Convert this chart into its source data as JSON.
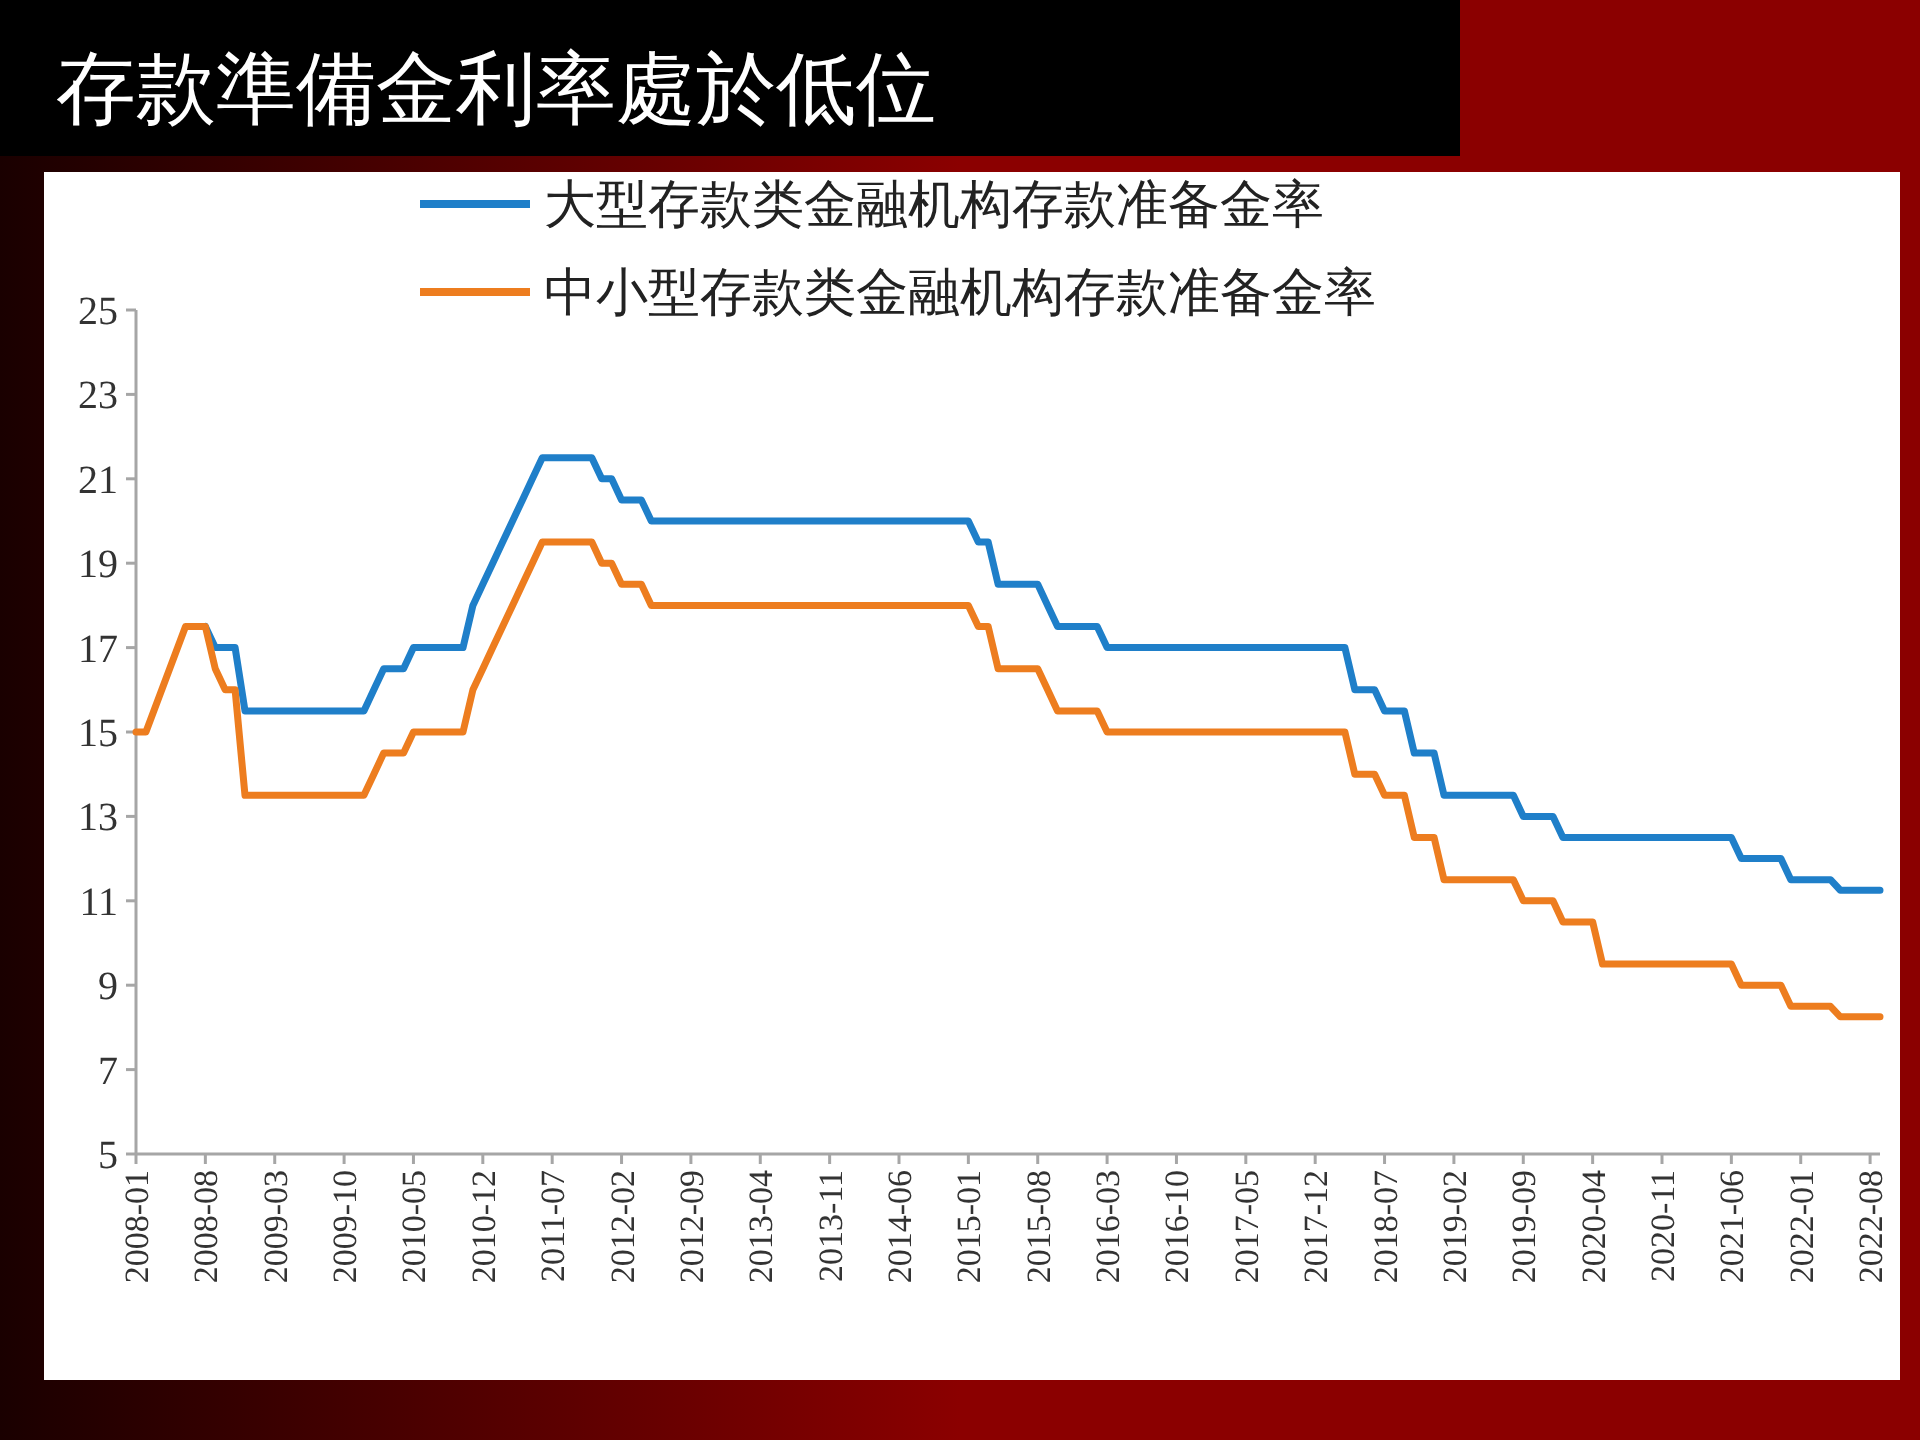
{
  "chart_data": {
    "type": "line",
    "title": "存款準備金利率處於低位",
    "series": [
      {
        "name": "大型存款类金融机构存款准备金率",
        "color": "#1f7fc9",
        "x": [
          "2008-08",
          "2008-09",
          "2008-11",
          "2008-12",
          "2009-12",
          "2010-01",
          "2010-02",
          "2010-04",
          "2010-05",
          "2010-10",
          "2010-11",
          "2010-12",
          "2011-01",
          "2011-02",
          "2011-03",
          "2011-04",
          "2011-05",
          "2011-06",
          "2011-11",
          "2011-12",
          "2012-01",
          "2012-02",
          "2012-04",
          "2012-05",
          "2015-01",
          "2015-02",
          "2015-03",
          "2015-04",
          "2015-08",
          "2015-09",
          "2015-10",
          "2016-02",
          "2016-03",
          "2018-03",
          "2018-04",
          "2018-06",
          "2018-07",
          "2018-09",
          "2018-10",
          "2018-12",
          "2019-01",
          "2019-08",
          "2019-09",
          "2019-12",
          "2020-01",
          "2021-06",
          "2021-07",
          "2021-11",
          "2021-12",
          "2022-04",
          "2022-05",
          "2022-09"
        ],
        "values": [
          17.5,
          17,
          17,
          15.5,
          15.5,
          16,
          16.5,
          16.5,
          17,
          17,
          18,
          18.5,
          19,
          19.5,
          20,
          20.5,
          21,
          21.5,
          21.5,
          21,
          21,
          20.5,
          20.5,
          20,
          20,
          19.5,
          19.5,
          18.5,
          18.5,
          18,
          17.5,
          17.5,
          17,
          17,
          16,
          16,
          15.5,
          15.5,
          14.5,
          14.5,
          13.5,
          13.5,
          13,
          13,
          12.5,
          12.5,
          12,
          12,
          11.5,
          11.5,
          11.25,
          11.25
        ]
      },
      {
        "name": "中小型存款类金融机构存款准备金率",
        "color": "#ed7d1f",
        "x": [
          "2008-01",
          "2008-02",
          "2008-06",
          "2008-08",
          "2008-09",
          "2008-10",
          "2008-11",
          "2008-12",
          "2009-12",
          "2010-01",
          "2010-02",
          "2010-04",
          "2010-05",
          "2010-10",
          "2010-11",
          "2010-12",
          "2011-01",
          "2011-02",
          "2011-03",
          "2011-04",
          "2011-05",
          "2011-06",
          "2011-11",
          "2011-12",
          "2012-01",
          "2012-02",
          "2012-04",
          "2012-05",
          "2015-01",
          "2015-02",
          "2015-03",
          "2015-04",
          "2015-08",
          "2015-09",
          "2015-10",
          "2016-02",
          "2016-03",
          "2018-03",
          "2018-04",
          "2018-06",
          "2018-07",
          "2018-09",
          "2018-10",
          "2018-12",
          "2019-01",
          "2019-08",
          "2019-09",
          "2019-12",
          "2020-01",
          "2020-04",
          "2020-05",
          "2021-06",
          "2021-07",
          "2021-11",
          "2021-12",
          "2022-04",
          "2022-05",
          "2022-09"
        ],
        "values": [
          15,
          15,
          17.5,
          17.5,
          16.5,
          16,
          16,
          13.5,
          13.5,
          14,
          14.5,
          14.5,
          15,
          15,
          16,
          16.5,
          17,
          17.5,
          18,
          18.5,
          19,
          19.5,
          19.5,
          19,
          19,
          18.5,
          18.5,
          18,
          18,
          17.5,
          17.5,
          16.5,
          16.5,
          16,
          15.5,
          15.5,
          15,
          15,
          14,
          14,
          13.5,
          13.5,
          12.5,
          12.5,
          11.5,
          11.5,
          11,
          11,
          10.5,
          10.5,
          9.5,
          9.5,
          9,
          9,
          8.5,
          8.5,
          8.25,
          8.25
        ]
      }
    ],
    "xlim": [
      "2008-01",
      "2022-09"
    ],
    "xticks": [
      "2008-01",
      "2008-08",
      "2009-03",
      "2009-10",
      "2010-05",
      "2010-12",
      "2011-07",
      "2012-02",
      "2012-09",
      "2013-04",
      "2013-11",
      "2014-06",
      "2015-01",
      "2015-08",
      "2016-03",
      "2016-10",
      "2017-05",
      "2017-12",
      "2018-07",
      "2019-02",
      "2019-09",
      "2020-04",
      "2020-11",
      "2021-06",
      "2022-01",
      "2022-08"
    ],
    "ylim": [
      5,
      25
    ],
    "yticks": [
      5,
      7,
      9,
      11,
      13,
      15,
      17,
      19,
      21,
      23,
      25
    ],
    "legend": "top",
    "grid": false
  }
}
